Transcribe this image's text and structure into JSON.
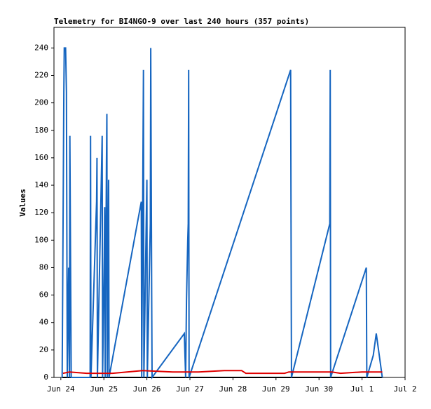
{
  "chart_data": {
    "type": "line",
    "title": "Telemetry for BI4NGO-9 over last 240 hours (357 points)",
    "y_label": "Values",
    "xlim": [
      23.84,
      32
    ],
    "ylim": [
      0,
      255
    ],
    "xticks": [
      {
        "value": 24,
        "label": "Jun 24"
      },
      {
        "value": 25,
        "label": "Jun 25"
      },
      {
        "value": 26,
        "label": "Jun 26"
      },
      {
        "value": 27,
        "label": "Jun 27"
      },
      {
        "value": 28,
        "label": "Jun 28"
      },
      {
        "value": 29,
        "label": "Jun 29"
      },
      {
        "value": 30,
        "label": "Jun 30"
      },
      {
        "value": 31,
        "label": "Jul 1"
      },
      {
        "value": 32,
        "label": "Jul 2"
      }
    ],
    "yticks": [
      0,
      20,
      40,
      60,
      80,
      100,
      120,
      140,
      160,
      180,
      200,
      220,
      240
    ],
    "series": [
      {
        "color": "#000000",
        "x": [
          24.03,
          31.47
        ],
        "values": [
          0,
          0
        ]
      },
      {
        "color": "#1565c0",
        "x": [
          24.03,
          24.07,
          24.08,
          24.11,
          24.13,
          24.15,
          24.18,
          24.2,
          24.21,
          24.23,
          24.24,
          24.68,
          24.69,
          24.7,
          24.83,
          24.84,
          24.85,
          24.96,
          24.97,
          25.01,
          25.02,
          25.03,
          25.06,
          25.07,
          25.08,
          25.11,
          25.12,
          25.87,
          25.88,
          25.92,
          25.93,
          26.0,
          26.01,
          26.08,
          26.09,
          26.11,
          26.12,
          26.87,
          26.9,
          26.92,
          26.95,
          26.96,
          26.97,
          26.98,
          29.34,
          29.35,
          29.36,
          30.25,
          30.26,
          30.27,
          31.1,
          31.11,
          31.26,
          31.33,
          31.47
        ],
        "values": [
          0,
          208,
          240,
          240,
          208,
          0,
          80,
          0,
          176,
          64,
          0,
          0,
          176,
          0,
          128,
          160,
          0,
          176,
          0,
          88,
          124,
          0,
          158,
          192,
          0,
          144,
          0,
          128,
          0,
          224,
          0,
          144,
          0,
          112,
          240,
          64,
          0,
          32,
          0,
          56,
          100,
          112,
          224,
          0,
          224,
          112,
          0,
          112,
          224,
          0,
          80,
          0,
          16,
          32,
          0
        ]
      },
      {
        "color": "#e00000",
        "x": [
          24.05,
          24.2,
          24.6,
          25.2,
          25.9,
          26.6,
          27.2,
          27.8,
          28.2,
          28.3,
          29.2,
          29.3,
          30.3,
          30.5,
          31.0,
          31.47
        ],
        "values": [
          3,
          4,
          3,
          3,
          5,
          4,
          4,
          5,
          5,
          3,
          3,
          4,
          4,
          3,
          4,
          4
        ]
      }
    ]
  }
}
